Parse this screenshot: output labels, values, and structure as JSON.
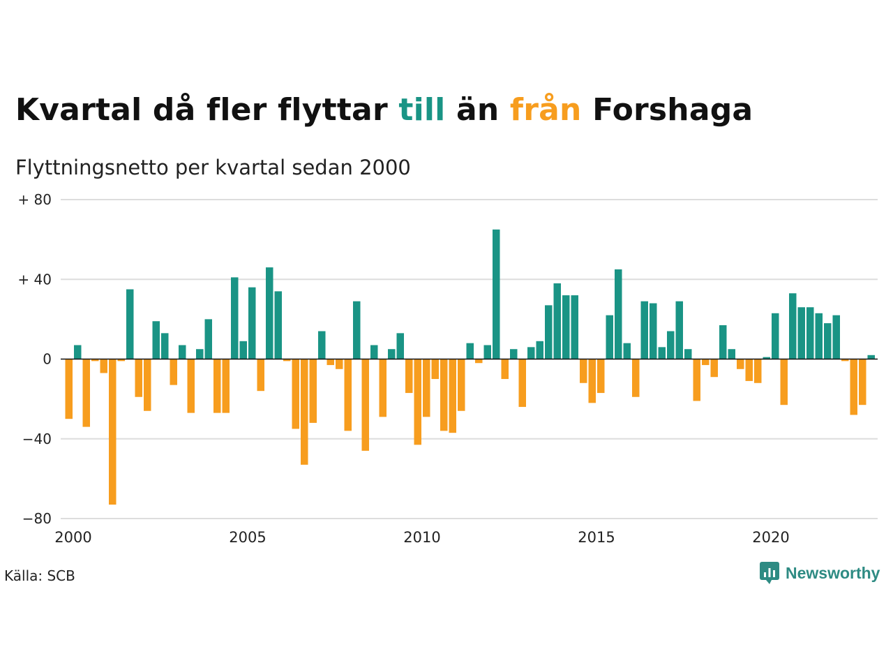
{
  "title": {
    "part1": "Kvartal då fler flyttar ",
    "till": "till",
    "part2": " än ",
    "fran": "från",
    "part3": " Forshaga"
  },
  "subtitle": "Flyttningsnetto per kvartal sedan 2000",
  "source": "Källa: SCB",
  "brand": "Newsworthy",
  "colors": {
    "positive": "#1a9485",
    "negative": "#f79d1e",
    "grid": "#dddddd",
    "axis": "#111111"
  },
  "chart_data": {
    "type": "bar",
    "x_start_year": 2000,
    "periods_per_year": 4,
    "ylim": [
      -80,
      80
    ],
    "y_ticks": [
      {
        "value": 80,
        "label": "+ 80"
      },
      {
        "value": 40,
        "label": "+ 40"
      },
      {
        "value": 0,
        "label": "0"
      },
      {
        "value": -40,
        "label": "−40"
      },
      {
        "value": -80,
        "label": "−80"
      }
    ],
    "x_ticks": [
      {
        "value": 2000,
        "label": "2000"
      },
      {
        "value": 2005,
        "label": "2005"
      },
      {
        "value": 2010,
        "label": "2010"
      },
      {
        "value": 2015,
        "label": "2015"
      },
      {
        "value": 2020,
        "label": "2020"
      }
    ],
    "values": [
      -30,
      7,
      -34,
      -1,
      -7,
      -73,
      -1,
      35,
      -19,
      -26,
      19,
      13,
      -13,
      7,
      -27,
      5,
      20,
      -27,
      -27,
      41,
      9,
      36,
      -16,
      46,
      34,
      -1,
      -35,
      -53,
      -32,
      14,
      -3,
      -5,
      -36,
      29,
      -46,
      7,
      -29,
      5,
      13,
      -17,
      -43,
      -29,
      -10,
      -36,
      -37,
      -26,
      8,
      -2,
      7,
      65,
      -10,
      5,
      -24,
      6,
      9,
      27,
      38,
      32,
      32,
      -12,
      -22,
      -17,
      22,
      45,
      8,
      -19,
      29,
      28,
      6,
      14,
      29,
      5,
      -21,
      -3,
      -9,
      17,
      5,
      -5,
      -11,
      -12,
      1,
      23,
      -23,
      33,
      26,
      26,
      23,
      18,
      22,
      -1,
      -28,
      -23,
      2
    ]
  }
}
